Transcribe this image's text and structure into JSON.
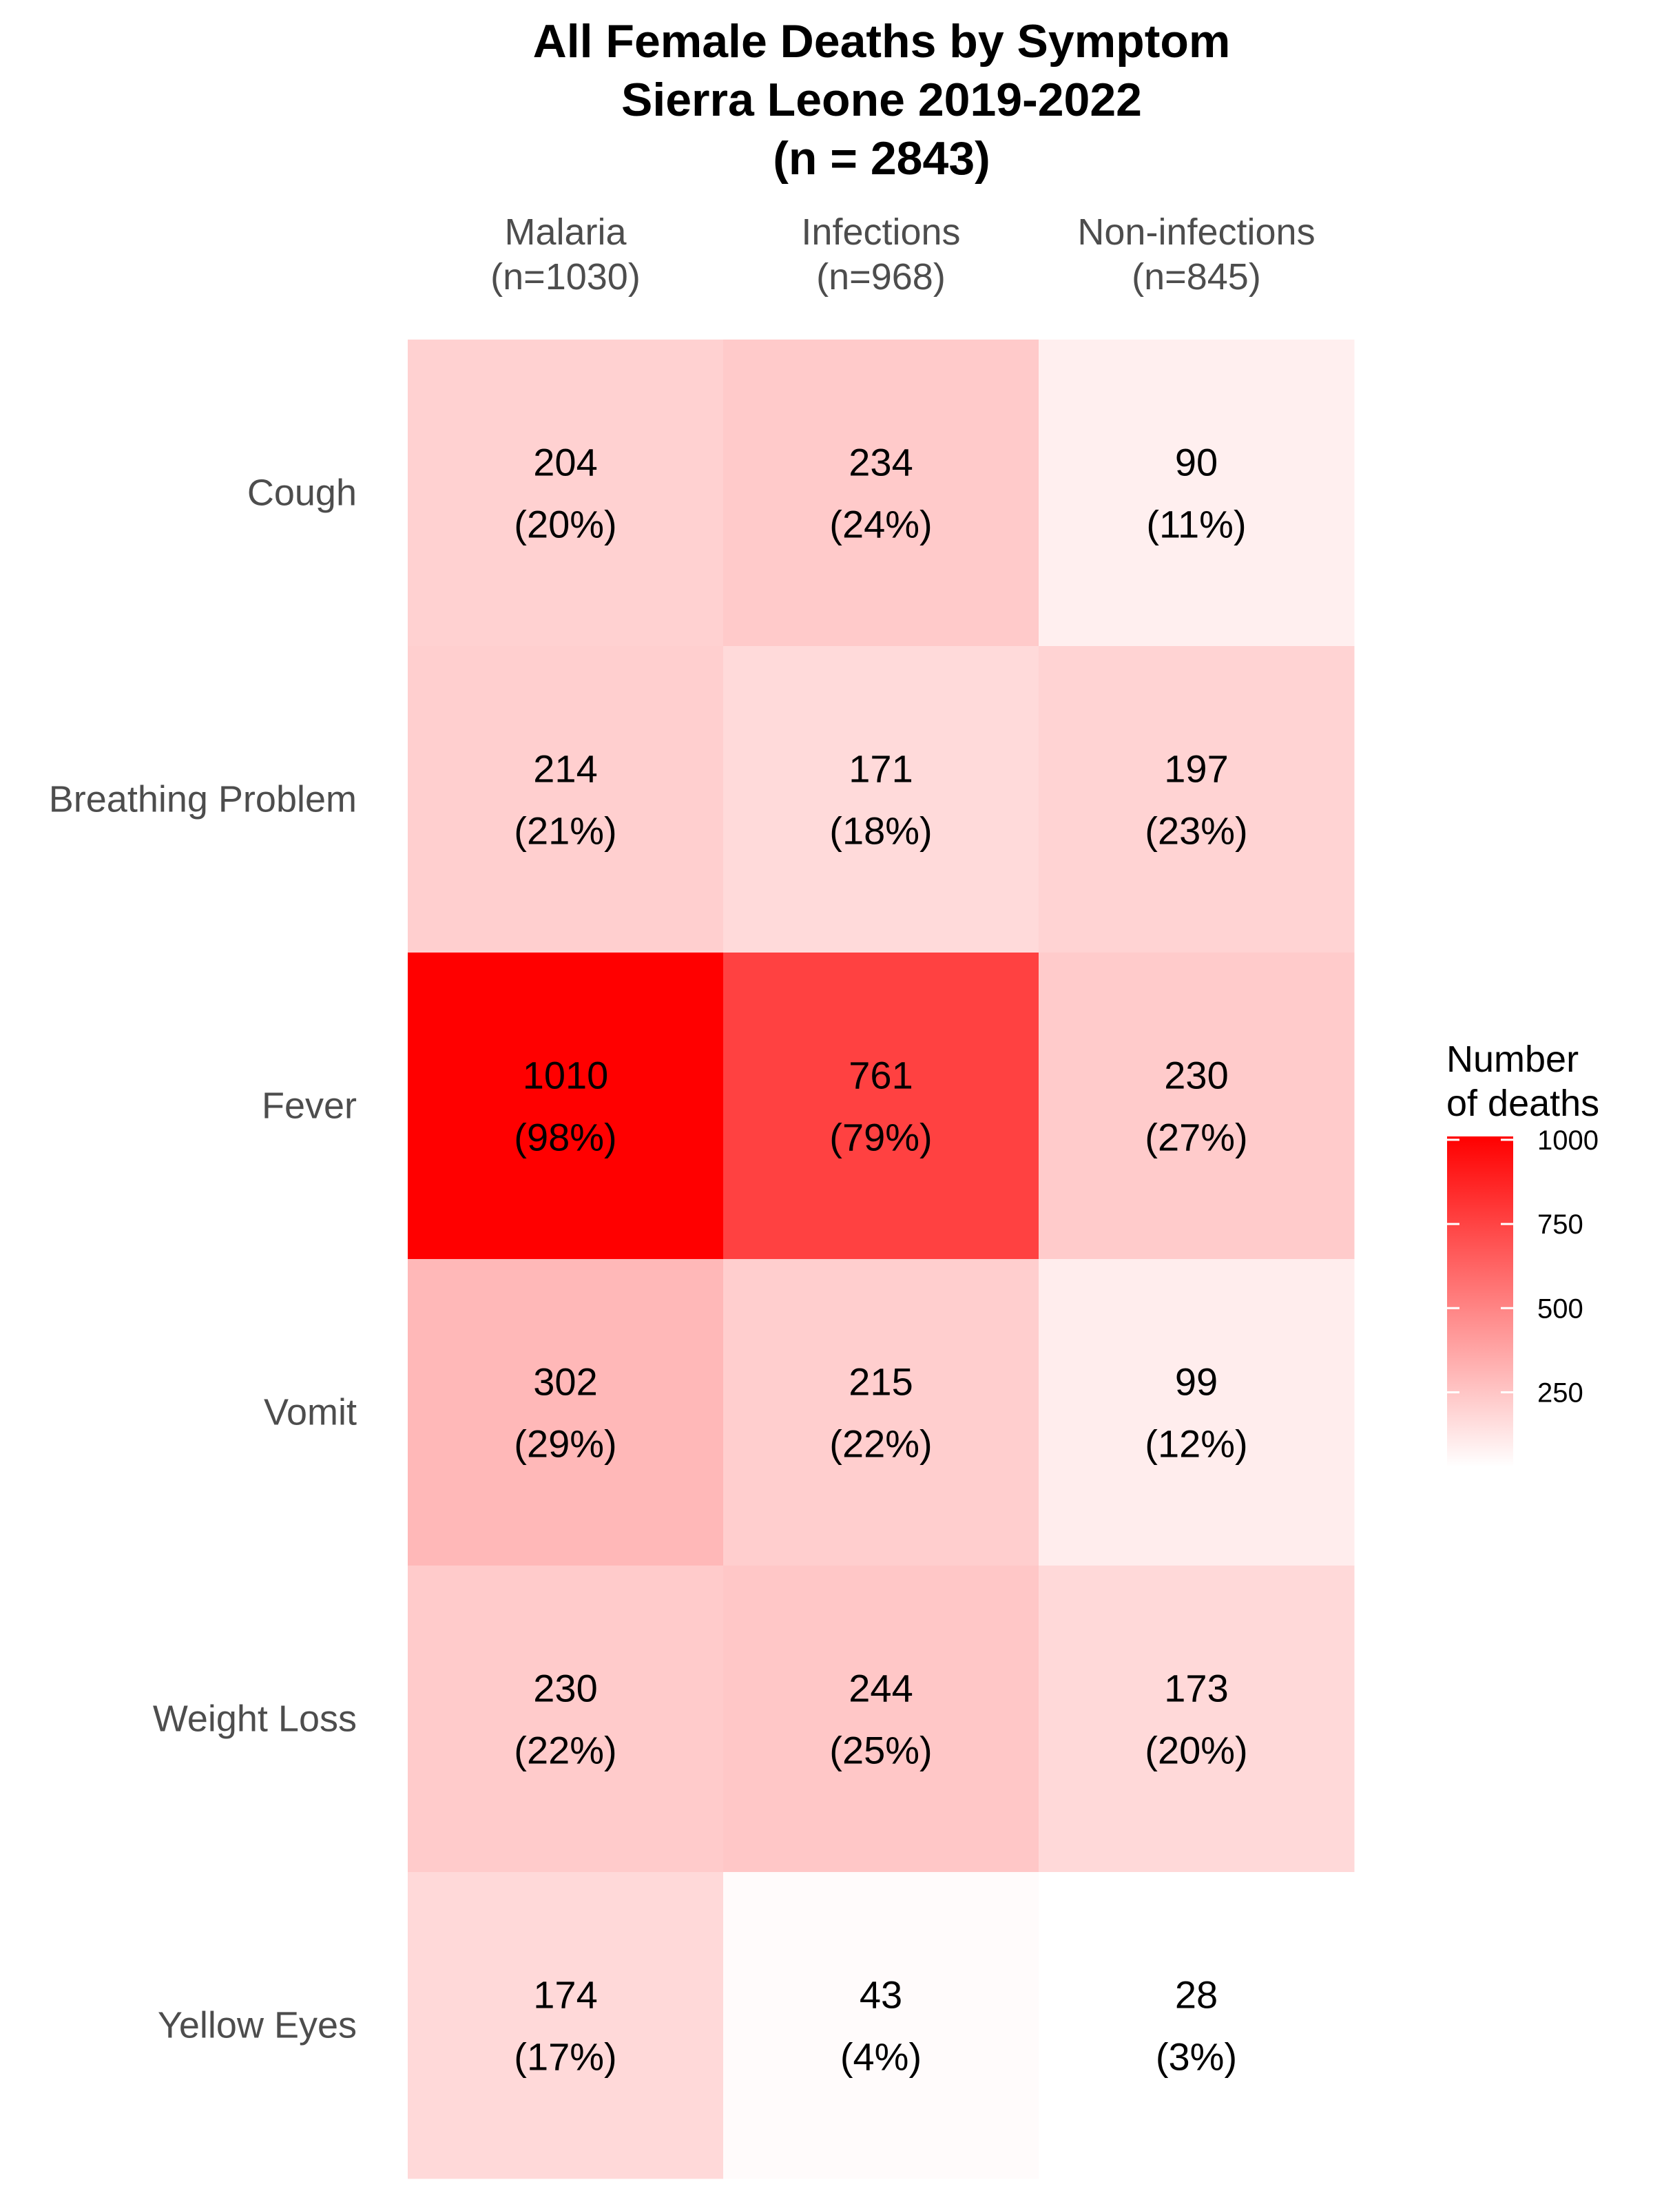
{
  "chart_data": {
    "type": "heatmap",
    "title_lines": [
      "All Female Deaths by Symptom",
      "Sierra Leone 2019-2022",
      "(n = 2843)"
    ],
    "columns": [
      {
        "name": "Malaria",
        "n_label": "(n=1030)"
      },
      {
        "name": "Infections",
        "n_label": "(n=968)"
      },
      {
        "name": "Non-infections",
        "n_label": "(n=845)"
      }
    ],
    "rows": [
      "Cough",
      "Breathing Problem",
      "Fever",
      "Vomit",
      "Weight Loss",
      "Yellow Eyes"
    ],
    "values": [
      [
        204,
        234,
        90
      ],
      [
        214,
        171,
        197
      ],
      [
        1010,
        761,
        230
      ],
      [
        302,
        215,
        99
      ],
      [
        230,
        244,
        173
      ],
      [
        174,
        43,
        28
      ]
    ],
    "percent_labels": [
      [
        "(20%)",
        "(24%)",
        "(11%)"
      ],
      [
        "(21%)",
        "(18%)",
        "(23%)"
      ],
      [
        "(98%)",
        "(79%)",
        "(27%)"
      ],
      [
        "(29%)",
        "(22%)",
        "(12%)"
      ],
      [
        "(22%)",
        "(25%)",
        "(20%)"
      ],
      [
        "(17%)",
        "(4%)",
        "(3%)"
      ]
    ],
    "legend": {
      "title_lines": [
        "Number",
        "of deaths"
      ],
      "ticks": [
        250,
        500,
        750,
        1000
      ],
      "range": [
        28,
        1010
      ],
      "low_color": "#ffffff",
      "high_color": "#ff0000",
      "placement": "right"
    },
    "grid": false
  }
}
